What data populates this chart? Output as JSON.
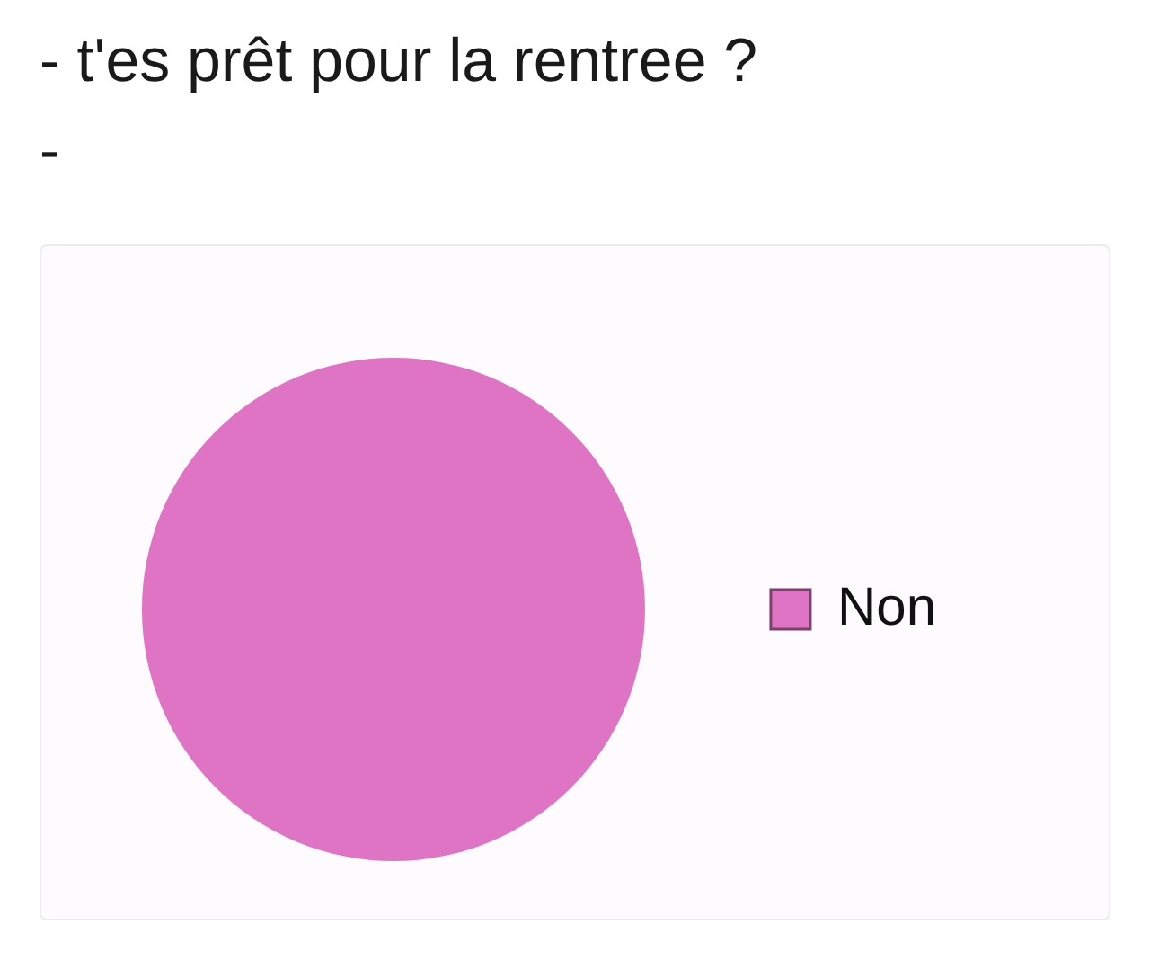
{
  "chart_data": {
    "type": "pie",
    "title": "- t'es prêt pour la rentree ?",
    "subtitle": "-",
    "categories": [
      "Non"
    ],
    "values": [
      100
    ],
    "colors": [
      "#df74c4"
    ],
    "legend": "right"
  }
}
